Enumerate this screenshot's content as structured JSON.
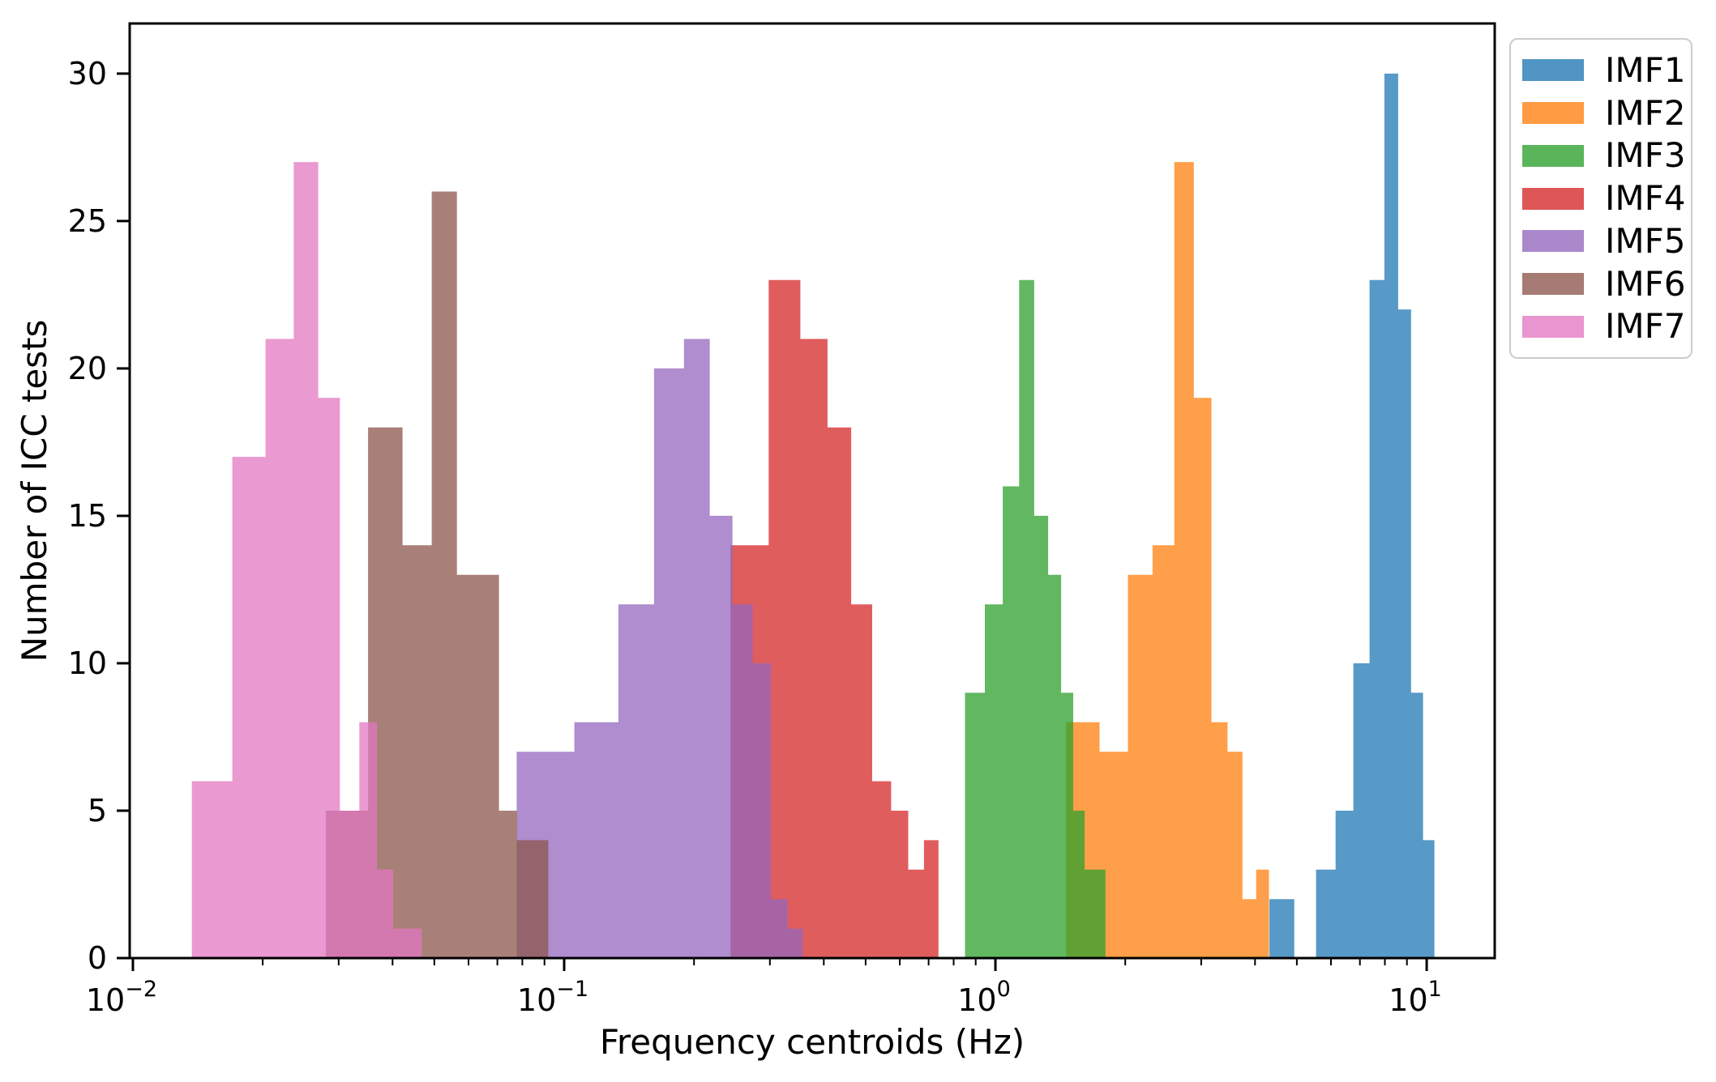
{
  "chart_data": {
    "type": "bar",
    "subtype": "overlapping-histograms",
    "title": "",
    "xlabel": "Frequency centroids (Hz)",
    "ylabel": "Number of ICC tests",
    "x_scale": "log",
    "xlim": [
      0.00983,
      14.38
    ],
    "ylim": [
      0,
      31.7
    ],
    "grid": false,
    "bar_alpha": 0.75,
    "legend_position": "outside-upper-right",
    "x_major_ticks": [
      {
        "value": 0.01,
        "base": "10",
        "exp": "−2"
      },
      {
        "value": 0.1,
        "base": "10",
        "exp": "−1"
      },
      {
        "value": 1,
        "base": "10",
        "exp": "0"
      },
      {
        "value": 10,
        "base": "10",
        "exp": "1"
      }
    ],
    "y_ticks": [
      0,
      5,
      10,
      15,
      20,
      25,
      30
    ],
    "series": [
      {
        "name": "IMF1",
        "color": "#1f77b4",
        "bin_edges": [
          4.32,
          4.93,
          5.54,
          6.15,
          6.76,
          7.37,
          7.98,
          8.59,
          9.2,
          9.81,
          10.42
        ],
        "counts": [
          2,
          0,
          3,
          5,
          10,
          23,
          30,
          22,
          9,
          4
        ]
      },
      {
        "name": "IMF2",
        "color": "#ff7f0e",
        "bin_edges": [
          1.459,
          1.744,
          2.029,
          2.314,
          2.599,
          2.884,
          3.169,
          3.454,
          3.739,
          4.024,
          4.309
        ],
        "counts": [
          8,
          7,
          13,
          14,
          27,
          19,
          8,
          7,
          2,
          3
        ]
      },
      {
        "name": "IMF3",
        "color": "#2ca02c",
        "bin_edges": [
          0.85,
          0.945,
          1.04,
          1.135,
          1.23,
          1.325,
          1.42,
          1.515,
          1.61,
          1.705,
          1.8
        ],
        "counts": [
          9,
          12,
          16,
          23,
          15,
          13,
          9,
          5,
          3,
          3
        ]
      },
      {
        "name": "IMF4",
        "color": "#d62728",
        "bin_edges": [
          0.243,
          0.298,
          0.353,
          0.408,
          0.463,
          0.518,
          0.573,
          0.628,
          0.683,
          0.738
        ],
        "counts": [
          14,
          23,
          21,
          18,
          12,
          6,
          5,
          3,
          4
        ]
      },
      {
        "name": "IMF5",
        "color": "#9467bd",
        "bin_edges": [
          0.0776,
          0.1056,
          0.1336,
          0.1616,
          0.1896,
          0.2176,
          0.2456,
          0.2736,
          0.3016,
          0.3296,
          0.3576
        ],
        "counts": [
          7,
          8,
          12,
          20,
          21,
          15,
          12,
          10,
          2,
          1
        ]
      },
      {
        "name": "IMF6",
        "color": "#8c564b",
        "bin_edges": [
          0.028,
          0.0351,
          0.0422,
          0.0493,
          0.0564,
          0.0635,
          0.0706,
          0.0777,
          0.0848,
          0.0919
        ],
        "counts": [
          5,
          18,
          14,
          26,
          13,
          13,
          5,
          4,
          4
        ]
      },
      {
        "name": "IMF7",
        "color": "#e377c2",
        "bin_edges": [
          0.0137,
          0.017,
          0.0203,
          0.0236,
          0.0269,
          0.0302,
          0.0335,
          0.0368,
          0.0401,
          0.0434,
          0.0467
        ],
        "counts": [
          6,
          17,
          21,
          27,
          19,
          5,
          8,
          3,
          1,
          1
        ]
      }
    ]
  }
}
